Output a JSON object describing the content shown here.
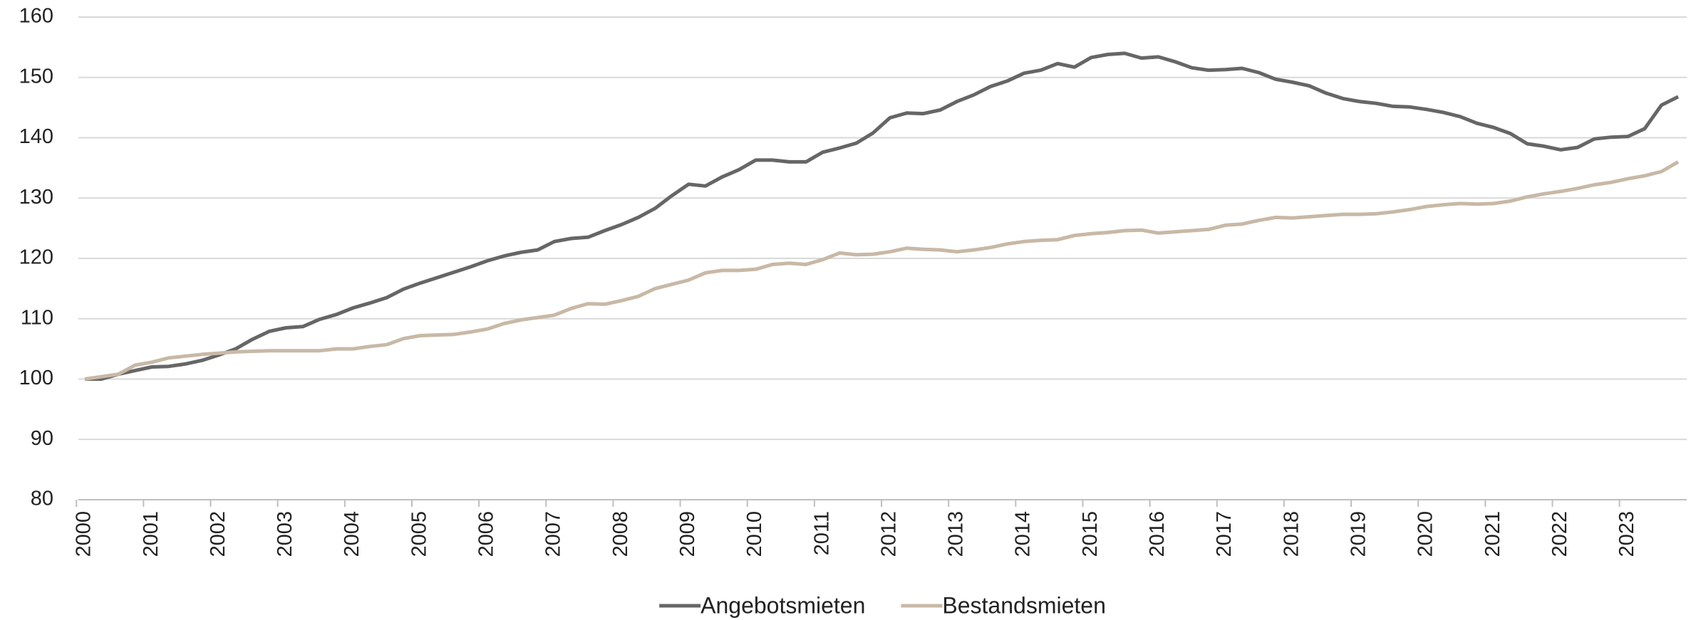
{
  "chart_data": {
    "type": "line",
    "categories": [
      "2000",
      null,
      null,
      null,
      "2001",
      null,
      null,
      null,
      "2002",
      null,
      null,
      null,
      "2003",
      null,
      null,
      null,
      "2004",
      null,
      null,
      null,
      "2005",
      null,
      null,
      null,
      "2006",
      null,
      null,
      null,
      "2007",
      null,
      null,
      null,
      "2008",
      null,
      null,
      null,
      "2009",
      null,
      null,
      null,
      "2010",
      null,
      null,
      null,
      "2011",
      null,
      null,
      null,
      "2012",
      null,
      null,
      null,
      "2013",
      null,
      null,
      null,
      "2014",
      null,
      null,
      null,
      "2015",
      null,
      null,
      null,
      "2016",
      null,
      null,
      null,
      "2017",
      null,
      null,
      null,
      "2018",
      null,
      null,
      null,
      "2019",
      null,
      null,
      null,
      "2020",
      null,
      null,
      null,
      "2021",
      null,
      null,
      null,
      "2022",
      null,
      null,
      null,
      "2023",
      null,
      null,
      null
    ],
    "series": [
      {
        "name": "Angebotsmieten",
        "color": "#666666",
        "values": [
          100,
          100,
          100.8,
          101.4,
          102,
          102.1,
          102.5,
          103.1,
          104,
          105,
          106.6,
          107.9,
          108.5,
          108.7,
          109.9,
          110.7,
          111.8,
          112.6,
          113.5,
          114.9,
          115.9,
          116.8,
          117.7,
          118.6,
          119.6,
          120.4,
          121,
          121.4,
          122.8,
          123.3,
          123.5,
          124.6,
          125.6,
          126.8,
          128.3,
          130.4,
          132.3,
          132,
          133.5,
          134.7,
          136.3,
          136.3,
          136,
          136,
          137.6,
          138.3,
          139.1,
          140.8,
          143.3,
          144.1,
          144,
          144.6,
          146,
          147.1,
          148.5,
          149.4,
          150.7,
          151.2,
          152.3,
          151.7,
          153.3,
          153.8,
          154,
          153.2,
          153.4,
          152.6,
          151.6,
          151.2,
          151.3,
          151.5,
          150.8,
          149.7,
          149.2,
          148.6,
          147.4,
          146.5,
          146,
          145.7,
          145.2,
          145.1,
          144.7,
          144.2,
          143.5,
          142.4,
          141.7,
          140.7,
          139,
          138.6,
          138,
          138.4,
          139.8,
          140.1,
          140.2,
          141.5,
          145.4,
          146.8
        ]
      },
      {
        "name": "Bestandsmieten",
        "color": "#c8b8a6",
        "values": [
          100,
          100.4,
          100.8,
          102.3,
          102.8,
          103.5,
          103.8,
          104.1,
          104.3,
          104.5,
          104.6,
          104.7,
          104.7,
          104.7,
          104.7,
          105,
          105,
          105.4,
          105.7,
          106.7,
          107.2,
          107.3,
          107.4,
          107.8,
          108.3,
          109.2,
          109.8,
          110.2,
          110.6,
          111.7,
          112.5,
          112.4,
          113,
          113.7,
          115,
          115.7,
          116.4,
          117.6,
          118,
          118,
          118.2,
          119,
          119.2,
          119,
          119.8,
          120.9,
          120.6,
          120.7,
          121.1,
          121.7,
          121.5,
          121.4,
          121.1,
          121.4,
          121.8,
          122.4,
          122.8,
          123,
          123.1,
          123.8,
          124.1,
          124.3,
          124.6,
          124.7,
          124.2,
          124.4,
          124.6,
          124.8,
          125.5,
          125.7,
          126.3,
          126.8,
          126.7,
          126.9,
          127.1,
          127.3,
          127.3,
          127.4,
          127.7,
          128.1,
          128.6,
          128.9,
          129.1,
          129,
          129.1,
          129.5,
          130.2,
          130.7,
          131.1,
          131.6,
          132.2,
          132.6,
          133.2,
          133.7,
          134.4,
          136
        ]
      }
    ],
    "ylim": [
      80,
      160
    ],
    "yticks": [
      80,
      90,
      100,
      110,
      120,
      130,
      140,
      150,
      160
    ],
    "grid": true,
    "legend": "bottom"
  }
}
